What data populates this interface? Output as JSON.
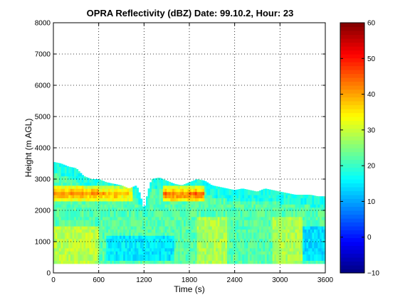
{
  "chart_data": {
    "type": "heatmap",
    "title": "OPRA Reflectivity (dBZ)  Date: 99.10.2, Hour: 23",
    "xlabel": "Time (s)",
    "ylabel": "Height (m AGL)",
    "xlim": [
      0,
      3600
    ],
    "ylim": [
      0,
      8000
    ],
    "x_ticks": [
      "0",
      "600",
      "1200",
      "1800",
      "2400",
      "3000",
      "3600"
    ],
    "y_ticks": [
      "0",
      "1000",
      "2000",
      "3000",
      "4000",
      "5000",
      "6000",
      "7000",
      "8000"
    ],
    "grid": true,
    "colorbar": {
      "range": [
        -10,
        60
      ],
      "ticks": [
        "−10",
        "0",
        "10",
        "20",
        "30",
        "40",
        "50",
        "60"
      ],
      "colormap": "jet"
    },
    "data_extent": {
      "time_range": [
        0,
        3600
      ],
      "min_height": 300,
      "echo_top_profile": [
        [
          0,
          3550
        ],
        [
          100,
          3500
        ],
        [
          200,
          3400
        ],
        [
          300,
          3350
        ],
        [
          400,
          3100
        ],
        [
          500,
          3000
        ],
        [
          600,
          3000
        ],
        [
          700,
          2900
        ],
        [
          800,
          2850
        ],
        [
          900,
          2800
        ],
        [
          1000,
          2700
        ],
        [
          1100,
          2800
        ],
        [
          1150,
          2500
        ],
        [
          1200,
          2000
        ],
        [
          1250,
          2600
        ],
        [
          1300,
          3000
        ],
        [
          1400,
          3050
        ],
        [
          1500,
          2950
        ],
        [
          1600,
          2850
        ],
        [
          1700,
          2800
        ],
        [
          1800,
          2900
        ],
        [
          1900,
          3000
        ],
        [
          2000,
          2950
        ],
        [
          2100,
          2800
        ],
        [
          2200,
          2750
        ],
        [
          2300,
          2700
        ],
        [
          2400,
          2650
        ],
        [
          2500,
          2700
        ],
        [
          2600,
          2650
        ],
        [
          2700,
          2600
        ],
        [
          2800,
          2700
        ],
        [
          2900,
          2650
        ],
        [
          3000,
          2600
        ],
        [
          3100,
          2550
        ],
        [
          3200,
          2500
        ],
        [
          3300,
          2500
        ],
        [
          3400,
          2500
        ],
        [
          3500,
          2450
        ],
        [
          3600,
          2450
        ]
      ]
    },
    "features": {
      "background_dbz": 22,
      "bright_band": {
        "height_range": [
          2300,
          2800
        ],
        "segments": [
          {
            "time_range": [
              0,
              1050
            ],
            "peak_dbz": 41
          },
          {
            "time_range": [
              1450,
              2000
            ],
            "peak_dbz": 45
          }
        ]
      },
      "enhanced_low_level": [
        {
          "time_range": [
            0,
            600
          ],
          "height_range": [
            300,
            1500
          ],
          "dbz": 29
        },
        {
          "time_range": [
            1900,
            2300
          ],
          "height_range": [
            300,
            1800
          ],
          "dbz": 28
        },
        {
          "time_range": [
            2900,
            3300
          ],
          "height_range": [
            300,
            1800
          ],
          "dbz": 28
        }
      ],
      "weak_low_level": [
        {
          "time_range": [
            700,
            1600
          ],
          "height_range": [
            400,
            1200
          ],
          "dbz": 15
        },
        {
          "time_range": [
            3300,
            3600
          ],
          "height_range": [
            400,
            1500
          ],
          "dbz": 14
        }
      ]
    }
  }
}
